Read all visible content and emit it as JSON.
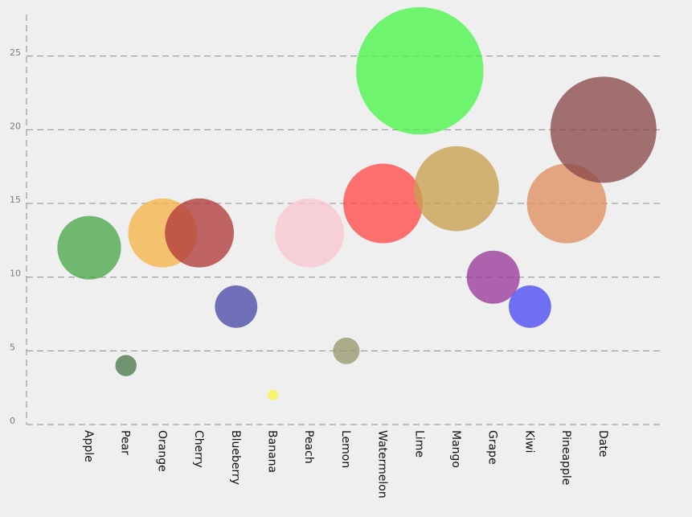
{
  "chart_data": {
    "type": "scatter",
    "variant": "bubble",
    "title": "",
    "xlabel": "",
    "ylabel": "",
    "ylim": [
      0,
      28
    ],
    "yticks": [
      0,
      5,
      10,
      15,
      20,
      25
    ],
    "grid": true,
    "legend": "none",
    "points": [
      {
        "label": "Apple",
        "y": 12,
        "size": 12,
        "color": "#4ca64c"
      },
      {
        "label": "Pear",
        "y": 4,
        "size": 4,
        "color": "#4a7a4a"
      },
      {
        "label": "Orange",
        "y": 13,
        "size": 13,
        "color": "#f5b54a"
      },
      {
        "label": "Cherry",
        "y": 13,
        "size": 13,
        "color": "#b03a3a"
      },
      {
        "label": "Blueberry",
        "y": 8,
        "size": 8,
        "color": "#4a4aa6"
      },
      {
        "label": "Banana",
        "y": 2,
        "size": 2,
        "color": "#f5f54a"
      },
      {
        "label": "Peach",
        "y": 13,
        "size": 13,
        "color": "#f8c6cf"
      },
      {
        "label": "Lemon",
        "y": 5,
        "size": 5,
        "color": "#99996e"
      },
      {
        "label": "Watermelon",
        "y": 15,
        "size": 15,
        "color": "#ff4a4a"
      },
      {
        "label": "Lime",
        "y": 24,
        "size": 24,
        "color": "#4af54a"
      },
      {
        "label": "Mango",
        "y": 16,
        "size": 16,
        "color": "#c8a050"
      },
      {
        "label": "Grape",
        "y": 10,
        "size": 10,
        "color": "#9a3a9a"
      },
      {
        "label": "Kiwi",
        "y": 8,
        "size": 8,
        "color": "#4a4af5"
      },
      {
        "label": "Pineapple",
        "y": 15,
        "size": 15,
        "color": "#de9060"
      },
      {
        "label": "Date",
        "y": 20,
        "size": 20,
        "color": "#8a4a4a"
      }
    ]
  }
}
